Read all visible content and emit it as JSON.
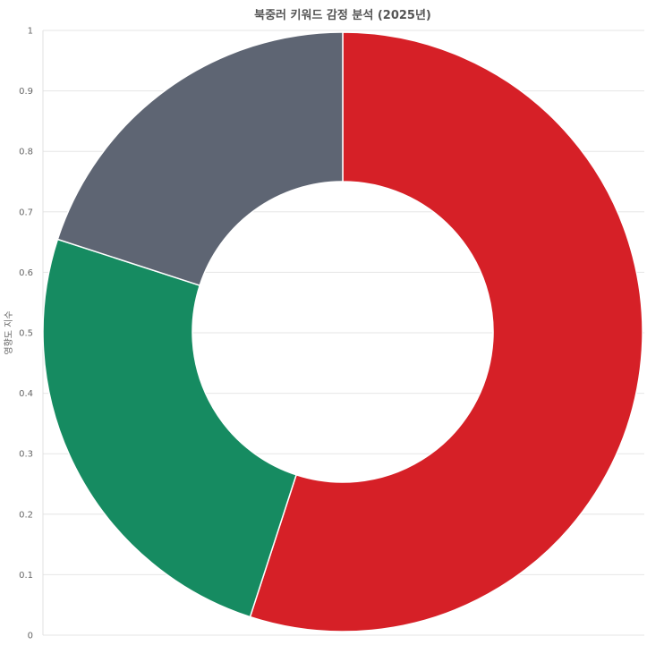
{
  "chart_data": {
    "type": "pie",
    "title": "북중러 키워드 감정 분석 (2025년)",
    "ylabel": "영향도 지수",
    "ylim": [
      0,
      1
    ],
    "yticks": [
      "0",
      "0.1",
      "0.2",
      "0.3",
      "0.4",
      "0.5",
      "0.6",
      "0.7",
      "0.8",
      "0.9",
      "1"
    ],
    "grid": true,
    "slices": [
      {
        "value": 0.55,
        "color": "#d62027"
      },
      {
        "value": 0.25,
        "color": "#168b61"
      },
      {
        "value": 0.2,
        "color": "#5e6573"
      }
    ]
  }
}
